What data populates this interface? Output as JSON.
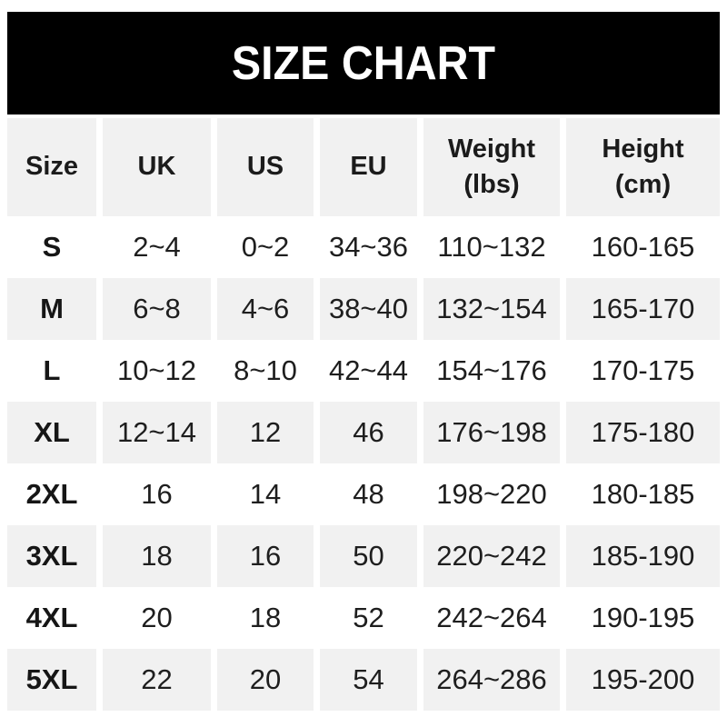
{
  "title": "SIZE CHART",
  "colors": {
    "banner_bg": "#000000",
    "banner_text": "#ffffff",
    "alt_row_bg": "#f1f1f1",
    "text": "#1e1e1e"
  },
  "table": {
    "columns": [
      {
        "label": "Size",
        "sub": ""
      },
      {
        "label": "UK",
        "sub": ""
      },
      {
        "label": "US",
        "sub": ""
      },
      {
        "label": "EU",
        "sub": ""
      },
      {
        "label": "Weight",
        "sub": "(lbs)"
      },
      {
        "label": "Height",
        "sub": "(cm)"
      }
    ],
    "rows": [
      {
        "size": "S",
        "uk": "2~4",
        "us": "0~2",
        "eu": "34~36",
        "weight": "110~132",
        "height": "160-165"
      },
      {
        "size": "M",
        "uk": "6~8",
        "us": "4~6",
        "eu": "38~40",
        "weight": "132~154",
        "height": "165-170"
      },
      {
        "size": "L",
        "uk": "10~12",
        "us": "8~10",
        "eu": "42~44",
        "weight": "154~176",
        "height": "170-175"
      },
      {
        "size": "XL",
        "uk": "12~14",
        "us": "12",
        "eu": "46",
        "weight": "176~198",
        "height": "175-180"
      },
      {
        "size": "2XL",
        "uk": "16",
        "us": "14",
        "eu": "48",
        "weight": "198~220",
        "height": "180-185"
      },
      {
        "size": "3XL",
        "uk": "18",
        "us": "16",
        "eu": "50",
        "weight": "220~242",
        "height": "185-190"
      },
      {
        "size": "4XL",
        "uk": "20",
        "us": "18",
        "eu": "52",
        "weight": "242~264",
        "height": "190-195"
      },
      {
        "size": "5XL",
        "uk": "22",
        "us": "20",
        "eu": "54",
        "weight": "264~286",
        "height": "195-200"
      }
    ]
  }
}
